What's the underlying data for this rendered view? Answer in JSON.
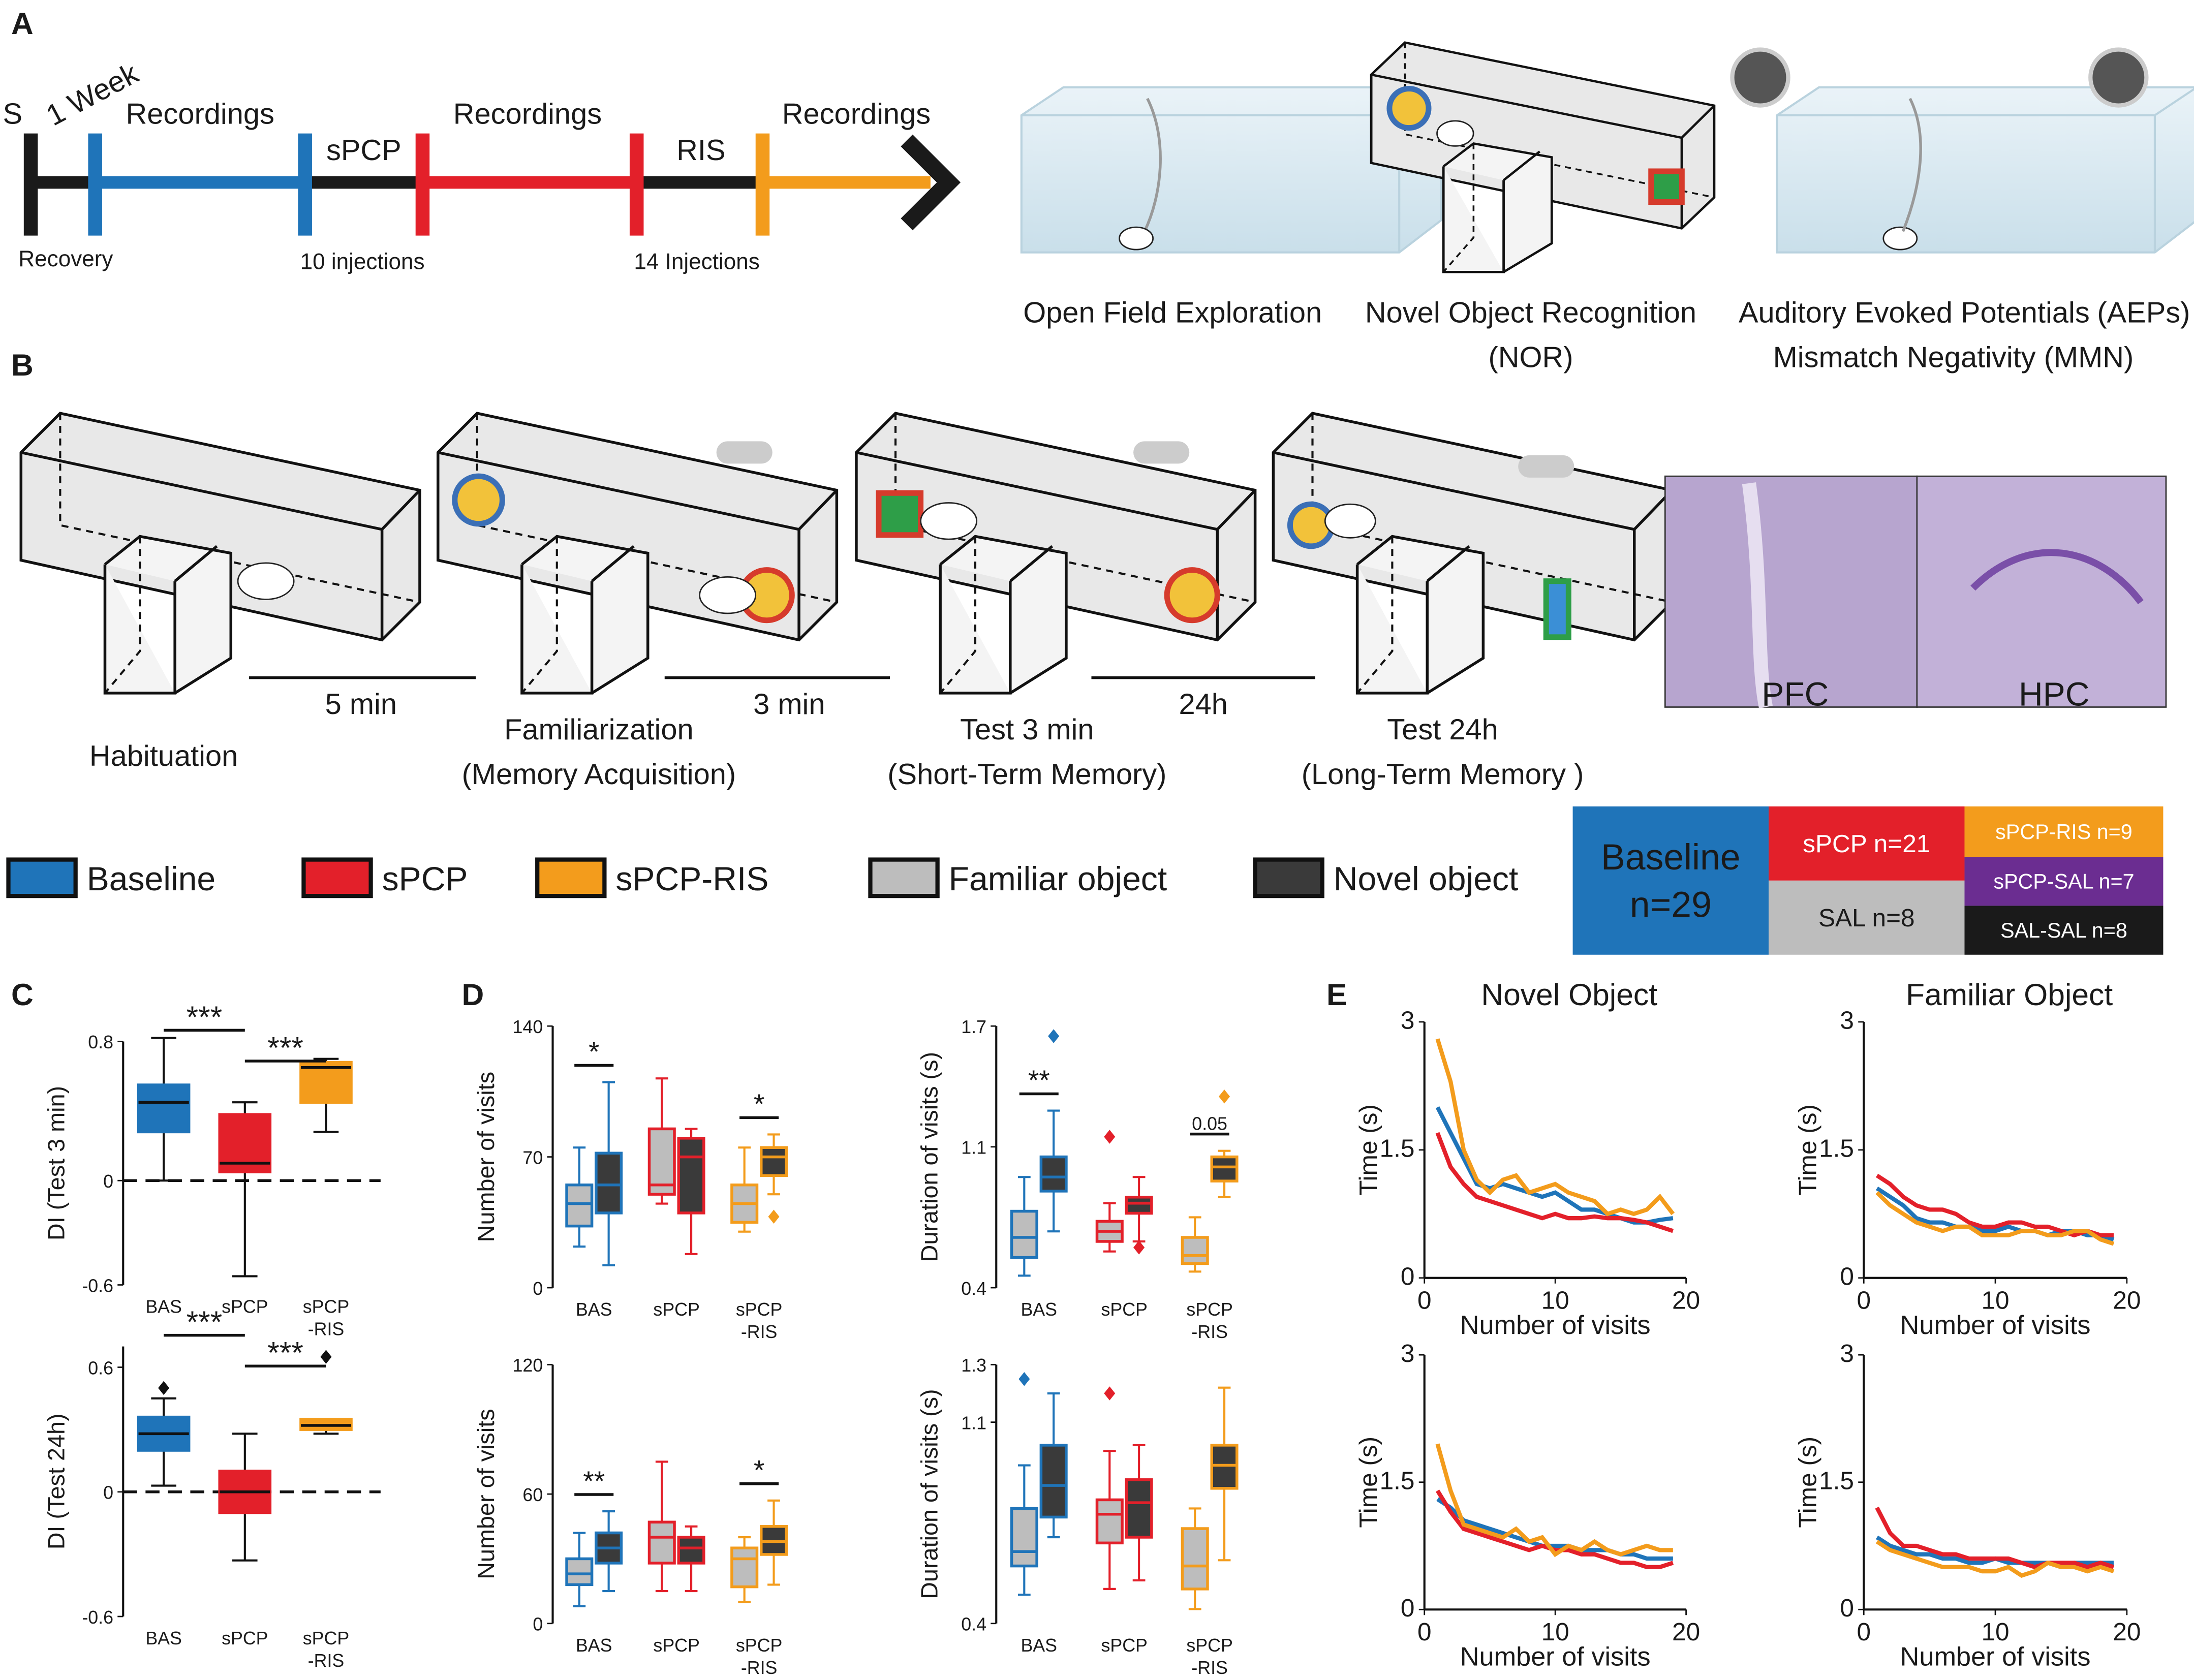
{
  "panel_labels": [
    "A",
    "B",
    "C",
    "D",
    "E"
  ],
  "timeline": {
    "start": "S",
    "interval": "1 Week",
    "phases": [
      "Recordings",
      "sPCP",
      "Recordings",
      "RIS",
      "Recordings"
    ],
    "notes": [
      "Recovery",
      "10 injections",
      "14 Injections"
    ]
  },
  "tasks": [
    "Open Field Exploration",
    "Novel Object Recognition",
    "(NOR)",
    "Auditory Evoked Potentials",
    "(AEPs)",
    "Mismatch Negativity (MMN)"
  ],
  "protocol": {
    "stages": [
      [
        "Habituation"
      ],
      [
        "Familiarization",
        "(Memory Acquisition)"
      ],
      [
        "Test 3 min",
        "(Short-Term Memory)"
      ],
      [
        "Test 24h",
        "(Long-Term Memory )"
      ]
    ],
    "intervals": [
      "5 min",
      "3 min",
      "24h"
    ]
  },
  "histology": [
    "PFC",
    "HPC"
  ],
  "legend": [
    {
      "label": "Baseline",
      "color": "#1f74b9"
    },
    {
      "label": "sPCP",
      "color": "#e3202a"
    },
    {
      "label": "sPCP-RIS",
      "color": "#f39c1c"
    },
    {
      "label": "Familiar object",
      "color": "#bdbdbd"
    },
    {
      "label": "Novel object",
      "color": "#3a3a3a"
    }
  ],
  "groups": [
    {
      "lines": [
        "Baseline",
        "n=29"
      ],
      "color": "#1f74b9"
    },
    {
      "lines": [
        "sPCP n=21"
      ],
      "color": "#e3202a"
    },
    {
      "lines": [
        "SAL n=8"
      ],
      "color": "#bdbdbd"
    },
    {
      "lines": [
        "sPCP-RIS n=9"
      ],
      "color": "#f39c1c"
    },
    {
      "lines": [
        "sPCP-SAL n=7"
      ],
      "color": "#6b2d91"
    },
    {
      "lines": [
        "SAL-SAL n=8"
      ],
      "color": "#1a1a1a"
    }
  ],
  "chart_data": [
    {
      "type": "box",
      "ylabel": "DI (Test 3 min)",
      "categories": [
        [
          "BAS"
        ],
        [
          "sPCP"
        ],
        [
          "sPCP",
          "-RIS"
        ]
      ],
      "category_colors": [
        "#1f74b9",
        "#e3202a",
        "#f39c1c"
      ],
      "ylim": [
        -0.6,
        0.8
      ],
      "yticks": [
        -0.6,
        0,
        0.8
      ],
      "hline": 0,
      "significance": [
        "***",
        "***"
      ],
      "series": [
        {
          "values": [
            [
              0.0,
              0.28,
              0.45,
              0.55,
              0.82
            ],
            [
              -0.55,
              0.05,
              0.1,
              0.38,
              0.45
            ],
            [
              0.28,
              0.45,
              0.65,
              0.68,
              0.7
            ]
          ],
          "fliers": [
            [],
            [],
            []
          ]
        }
      ]
    },
    {
      "type": "box",
      "ylabel": "DI (Test 24h)",
      "categories": [
        [
          "BAS"
        ],
        [
          "sPCP"
        ],
        [
          "sPCP",
          "-RIS"
        ]
      ],
      "category_colors": [
        "#1f74b9",
        "#e3202a",
        "#f39c1c"
      ],
      "ylim": [
        -0.6,
        0.7
      ],
      "yticks": [
        -0.6,
        0,
        0.6
      ],
      "hline": 0,
      "significance": [
        "***",
        "***"
      ],
      "series": [
        {
          "values": [
            [
              0.03,
              0.2,
              0.28,
              0.36,
              0.45
            ],
            [
              -0.33,
              -0.1,
              0.0,
              0.1,
              0.28
            ],
            [
              0.28,
              0.3,
              0.32,
              0.35,
              0.35
            ]
          ],
          "fliers": [
            [
              0.5
            ],
            [],
            [
              0.65
            ]
          ]
        }
      ]
    },
    {
      "type": "box",
      "ylabel": "Number of visits",
      "categories": [
        [
          "BAS"
        ],
        [
          "sPCP"
        ],
        [
          "sPCP",
          "-RIS"
        ]
      ],
      "category_colors": [
        "#1f74b9",
        "#e3202a",
        "#f39c1c"
      ],
      "ylim": [
        0,
        140
      ],
      "yticks": [
        0,
        70,
        140
      ],
      "annotations": [
        "*",
        null,
        "*"
      ],
      "series": [
        {
          "name": "Familiar object",
          "color": "#bdbdbd",
          "values": [
            [
              22,
              33,
              45,
              55,
              75
            ],
            [
              45,
              50,
              55,
              85,
              112
            ],
            [
              30,
              35,
              45,
              55,
              75
            ]
          ],
          "fliers": [
            [],
            [],
            []
          ]
        },
        {
          "name": "Novel object",
          "color": "#3a3a3a",
          "values": [
            [
              12,
              40,
              55,
              72,
              110
            ],
            [
              18,
              40,
              70,
              80,
              85
            ],
            [
              50,
              60,
              70,
              75,
              82
            ]
          ],
          "fliers": [
            [],
            [],
            [
              38
            ]
          ]
        }
      ]
    },
    {
      "type": "box",
      "ylabel": "Duration of visits (s)",
      "categories": [
        [
          "BAS"
        ],
        [
          "sPCP"
        ],
        [
          "sPCP",
          "-RIS"
        ]
      ],
      "category_colors": [
        "#1f74b9",
        "#e3202a",
        "#f39c1c"
      ],
      "ylim": [
        0.4,
        1.7
      ],
      "yticks": [
        0.4,
        1.1,
        1.7
      ],
      "annotations": [
        "**",
        null,
        "0.05"
      ],
      "series": [
        {
          "name": "Familiar object",
          "color": "#bdbdbd",
          "values": [
            [
              0.46,
              0.55,
              0.65,
              0.78,
              0.95
            ],
            [
              0.58,
              0.63,
              0.68,
              0.73,
              0.82
            ],
            [
              0.48,
              0.52,
              0.56,
              0.65,
              0.75
            ]
          ],
          "fliers": [
            [],
            [
              1.15
            ],
            []
          ]
        },
        {
          "name": "Novel object",
          "color": "#3a3a3a",
          "values": [
            [
              0.68,
              0.88,
              0.95,
              1.05,
              1.28
            ],
            [
              0.63,
              0.77,
              0.82,
              0.85,
              0.95
            ],
            [
              0.85,
              0.93,
              1.0,
              1.05,
              1.08
            ]
          ],
          "fliers": [
            [
              1.65
            ],
            [
              0.6
            ],
            [
              1.35
            ]
          ]
        }
      ]
    },
    {
      "type": "box",
      "ylabel": "Number of visits",
      "categories": [
        [
          "BAS"
        ],
        [
          "sPCP"
        ],
        [
          "sPCP",
          "-RIS"
        ]
      ],
      "category_colors": [
        "#1f74b9",
        "#e3202a",
        "#f39c1c"
      ],
      "ylim": [
        0,
        120
      ],
      "yticks": [
        0,
        60,
        120
      ],
      "annotations": [
        "**",
        null,
        "*"
      ],
      "series": [
        {
          "name": "Familiar object",
          "color": "#bdbdbd",
          "values": [
            [
              8,
              18,
              23,
              30,
              42
            ],
            [
              15,
              28,
              40,
              47,
              75
            ],
            [
              10,
              17,
              30,
              35,
              40
            ]
          ],
          "fliers": [
            [],
            [],
            []
          ]
        },
        {
          "name": "Novel object",
          "color": "#3a3a3a",
          "values": [
            [
              15,
              28,
              35,
              42,
              52
            ],
            [
              15,
              28,
              35,
              40,
              45
            ],
            [
              18,
              32,
              38,
              45,
              57
            ]
          ],
          "fliers": [
            [],
            [],
            []
          ]
        }
      ]
    },
    {
      "type": "box",
      "ylabel": "Duration of visits (s)",
      "categories": [
        [
          "BAS"
        ],
        [
          "sPCP"
        ],
        [
          "sPCP",
          "-RIS"
        ]
      ],
      "category_colors": [
        "#1f74b9",
        "#e3202a",
        "#f39c1c"
      ],
      "ylim": [
        0.4,
        1.3
      ],
      "yticks": [
        0.4,
        1.1,
        1.3
      ],
      "annotations": [
        null,
        null,
        null
      ],
      "series": [
        {
          "name": "Familiar object",
          "color": "#bdbdbd",
          "values": [
            [
              0.5,
              0.6,
              0.65,
              0.8,
              0.95
            ],
            [
              0.52,
              0.68,
              0.78,
              0.83,
              1.0
            ],
            [
              0.45,
              0.52,
              0.6,
              0.73,
              0.8
            ]
          ],
          "fliers": [
            [
              1.25
            ],
            [
              1.2
            ],
            []
          ]
        },
        {
          "name": "Novel object",
          "color": "#3a3a3a",
          "values": [
            [
              0.7,
              0.77,
              0.88,
              1.02,
              1.2
            ],
            [
              0.55,
              0.7,
              0.82,
              0.9,
              1.02
            ],
            [
              0.62,
              0.87,
              0.95,
              1.02,
              1.22
            ]
          ],
          "fliers": [
            [],
            [],
            []
          ]
        }
      ]
    },
    {
      "type": "line",
      "title": "Novel Object",
      "ylabel": "Time (s)",
      "xlabel": "Number of visits",
      "xlim": [
        0,
        20
      ],
      "xticks": [
        0,
        10,
        20
      ],
      "ylim": [
        0,
        3
      ],
      "yticks": [
        0,
        1.5,
        3
      ],
      "x": [
        1,
        2,
        3,
        4,
        5,
        6,
        7,
        8,
        9,
        10,
        11,
        12,
        13,
        14,
        15,
        16,
        17,
        18,
        19
      ],
      "series": [
        {
          "color": "#1f74b9",
          "values": [
            2.0,
            1.7,
            1.4,
            1.1,
            1.05,
            1.1,
            1.05,
            1.0,
            0.95,
            1.0,
            0.9,
            0.8,
            0.8,
            0.75,
            0.7,
            0.65,
            0.65,
            0.68,
            0.7
          ]
        },
        {
          "color": "#e3202a",
          "values": [
            1.7,
            1.3,
            1.1,
            0.95,
            0.9,
            0.85,
            0.8,
            0.75,
            0.7,
            0.75,
            0.7,
            0.7,
            0.72,
            0.7,
            0.7,
            0.68,
            0.65,
            0.6,
            0.55
          ]
        },
        {
          "color": "#f39c1c",
          "values": [
            2.8,
            2.3,
            1.5,
            1.15,
            1.0,
            1.15,
            1.2,
            1.0,
            1.05,
            1.1,
            1.0,
            0.95,
            0.9,
            0.75,
            0.8,
            0.75,
            0.8,
            0.95,
            0.75
          ]
        }
      ]
    },
    {
      "type": "line",
      "title": "Familiar Object",
      "ylabel": "Time (s)",
      "xlabel": "Number of visits",
      "xlim": [
        0,
        20
      ],
      "xticks": [
        0,
        10,
        20
      ],
      "ylim": [
        0,
        3
      ],
      "yticks": [
        0,
        1.5,
        3
      ],
      "x": [
        1,
        2,
        3,
        4,
        5,
        6,
        7,
        8,
        9,
        10,
        11,
        12,
        13,
        14,
        15,
        16,
        17,
        18,
        19
      ],
      "series": [
        {
          "color": "#1f74b9",
          "values": [
            1.05,
            0.95,
            0.85,
            0.7,
            0.65,
            0.65,
            0.6,
            0.6,
            0.55,
            0.55,
            0.6,
            0.55,
            0.55,
            0.5,
            0.55,
            0.55,
            0.5,
            0.5,
            0.45
          ]
        },
        {
          "color": "#e3202a",
          "values": [
            1.2,
            1.1,
            0.95,
            0.85,
            0.8,
            0.8,
            0.75,
            0.65,
            0.6,
            0.6,
            0.65,
            0.65,
            0.6,
            0.6,
            0.55,
            0.5,
            0.55,
            0.5,
            0.5
          ]
        },
        {
          "color": "#f39c1c",
          "values": [
            1.0,
            0.85,
            0.75,
            0.65,
            0.6,
            0.55,
            0.6,
            0.6,
            0.5,
            0.5,
            0.5,
            0.55,
            0.55,
            0.5,
            0.5,
            0.55,
            0.55,
            0.45,
            0.4
          ]
        }
      ]
    },
    {
      "type": "line",
      "ylabel": "Time (s)",
      "xlabel": "Number of visits",
      "xlim": [
        0,
        20
      ],
      "xticks": [
        0,
        10,
        20
      ],
      "ylim": [
        0,
        3
      ],
      "yticks": [
        0,
        1.5,
        3
      ],
      "x": [
        1,
        2,
        3,
        4,
        5,
        6,
        7,
        8,
        9,
        10,
        11,
        12,
        13,
        14,
        15,
        16,
        17,
        18,
        19
      ],
      "series": [
        {
          "color": "#1f74b9",
          "values": [
            1.3,
            1.2,
            1.05,
            1.0,
            0.95,
            0.9,
            0.85,
            0.8,
            0.75,
            0.75,
            0.75,
            0.7,
            0.7,
            0.7,
            0.65,
            0.65,
            0.6,
            0.6,
            0.6
          ]
        },
        {
          "color": "#e3202a",
          "values": [
            1.4,
            1.15,
            0.95,
            0.9,
            0.85,
            0.8,
            0.75,
            0.7,
            0.75,
            0.7,
            0.7,
            0.65,
            0.65,
            0.6,
            0.55,
            0.55,
            0.5,
            0.5,
            0.55
          ]
        },
        {
          "color": "#f39c1c",
          "values": [
            1.95,
            1.4,
            1.0,
            0.95,
            0.9,
            0.85,
            0.95,
            0.8,
            0.85,
            0.65,
            0.75,
            0.7,
            0.8,
            0.7,
            0.65,
            0.7,
            0.75,
            0.7,
            0.7
          ]
        }
      ]
    },
    {
      "type": "line",
      "ylabel": "Time (s)",
      "xlabel": "Number of visits",
      "xlim": [
        0,
        20
      ],
      "xticks": [
        0,
        10,
        20
      ],
      "ylim": [
        0,
        3
      ],
      "yticks": [
        0,
        1.5,
        3
      ],
      "x": [
        1,
        2,
        3,
        4,
        5,
        6,
        7,
        8,
        9,
        10,
        11,
        12,
        13,
        14,
        15,
        16,
        17,
        18,
        19
      ],
      "series": [
        {
          "color": "#1f74b9",
          "values": [
            0.85,
            0.75,
            0.7,
            0.65,
            0.65,
            0.6,
            0.6,
            0.55,
            0.55,
            0.6,
            0.55,
            0.55,
            0.55,
            0.55,
            0.5,
            0.55,
            0.55,
            0.55,
            0.55
          ]
        },
        {
          "color": "#e3202a",
          "values": [
            1.2,
            0.9,
            0.75,
            0.75,
            0.7,
            0.65,
            0.65,
            0.6,
            0.6,
            0.6,
            0.6,
            0.55,
            0.5,
            0.55,
            0.55,
            0.55,
            0.5,
            0.55,
            0.5
          ]
        },
        {
          "color": "#f39c1c",
          "values": [
            0.8,
            0.7,
            0.65,
            0.6,
            0.55,
            0.5,
            0.5,
            0.5,
            0.45,
            0.45,
            0.5,
            0.4,
            0.45,
            0.55,
            0.5,
            0.5,
            0.45,
            0.5,
            0.45
          ]
        }
      ]
    }
  ]
}
